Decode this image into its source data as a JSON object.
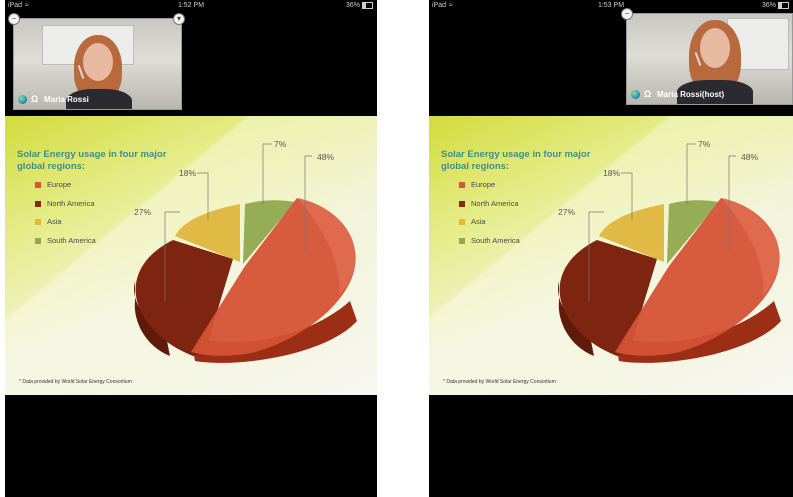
{
  "screens": [
    {
      "status": {
        "carrier": "iPad",
        "time": "1:52 PM",
        "battery": "36%"
      },
      "participant": {
        "name": "Maria Rossi"
      },
      "slide": {
        "title": "Solar Energy usage in four major global regions:",
        "footnote": "* Data provided by World Solar Energy Consortium",
        "legend": [
          {
            "label": "Europe",
            "color": "#d9553a"
          },
          {
            "label": "North America",
            "color": "#8a2a12"
          },
          {
            "label": "Asia",
            "color": "#e6b92a"
          },
          {
            "label": "South America",
            "color": "#8fa84a"
          }
        ],
        "percent_labels": [
          "48%",
          "27%",
          "18%",
          "7%"
        ]
      }
    },
    {
      "status": {
        "carrier": "iPad",
        "time": "1:53 PM",
        "battery": "36%"
      },
      "participant": {
        "name": "Maria Rossi(host)"
      },
      "slide": {
        "title": "Solar Energy usage in four major global regions:",
        "footnote": "* Data provided by World Solar Energy Consortium",
        "legend": [
          {
            "label": "Europe",
            "color": "#d9553a"
          },
          {
            "label": "North America",
            "color": "#8a2a12"
          },
          {
            "label": "Asia",
            "color": "#e6b92a"
          },
          {
            "label": "South America",
            "color": "#8fa84a"
          }
        ],
        "percent_labels": [
          "48%",
          "27%",
          "18%",
          "7%"
        ]
      }
    }
  ],
  "colors": {
    "background": "#000000",
    "slide_accent": "#d2dc3c",
    "title": "#3f8f86"
  }
}
